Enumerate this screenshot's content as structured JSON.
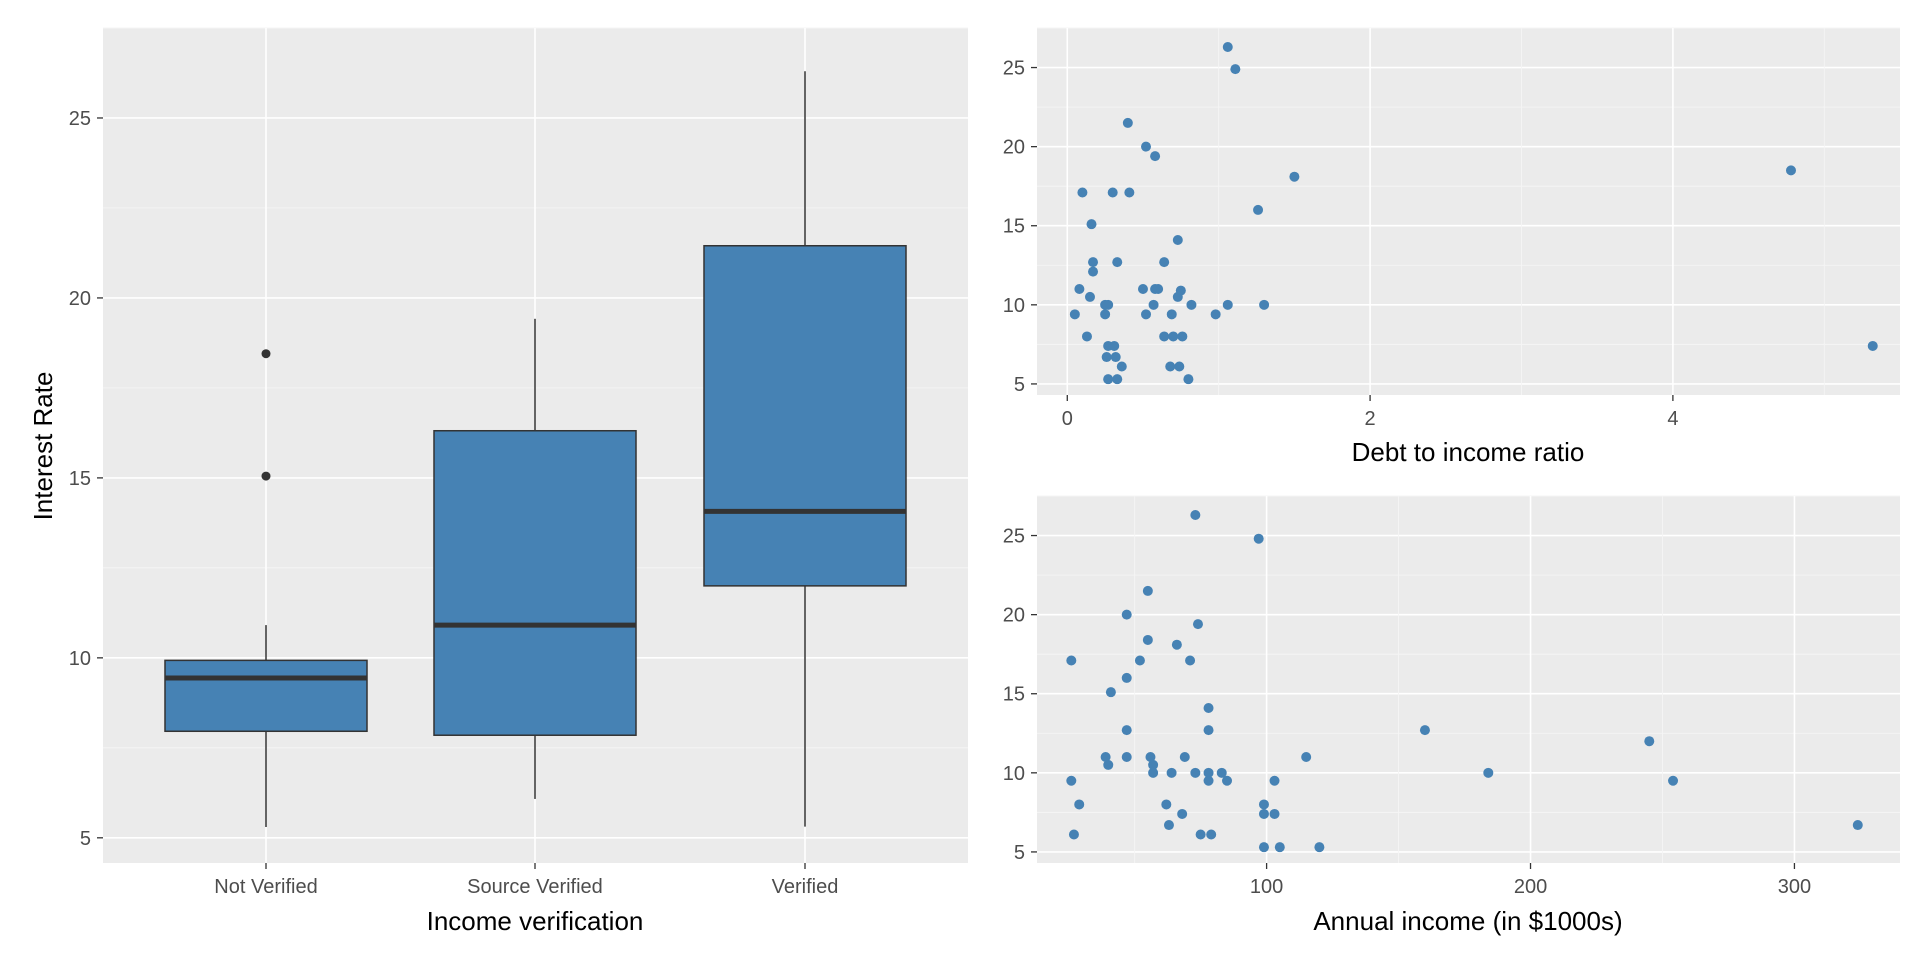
{
  "colors": {
    "fill": "#4682B4",
    "outline": "#333333",
    "panel": "#EBEBEB"
  },
  "chart_data": [
    {
      "type": "boxplot",
      "xlabel": "Income verification",
      "ylabel": "Interest Rate",
      "ylim": [
        4.3,
        27.5
      ],
      "yticks": [
        5,
        10,
        15,
        20,
        25
      ],
      "categories": [
        "Not Verified",
        "Source Verified",
        "Verified"
      ],
      "boxes": [
        {
          "category": "Not Verified",
          "min": 5.3,
          "q1": 7.96,
          "median": 9.44,
          "q3": 9.93,
          "max": 10.91,
          "outliers": [
            15.05,
            18.45
          ]
        },
        {
          "category": "Source Verified",
          "min": 6.08,
          "q1": 7.85,
          "median": 10.91,
          "q3": 16.31,
          "max": 19.42,
          "outliers": []
        },
        {
          "category": "Verified",
          "min": 5.31,
          "q1": 12.0,
          "median": 14.07,
          "q3": 21.45,
          "max": 26.3,
          "outliers": []
        }
      ]
    },
    {
      "type": "scatter",
      "xlabel": "Debt to income ratio",
      "ylabel": "",
      "xlim": [
        -0.2,
        5.5
      ],
      "ylim": [
        4.3,
        27.5
      ],
      "xticks": [
        0,
        2,
        4
      ],
      "yticks": [
        5,
        10,
        15,
        20,
        25
      ],
      "points": [
        [
          1.06,
          26.3
        ],
        [
          1.11,
          24.9
        ],
        [
          0.4,
          21.5
        ],
        [
          0.52,
          20.0
        ],
        [
          0.58,
          19.4
        ],
        [
          1.5,
          18.1
        ],
        [
          4.78,
          18.5
        ],
        [
          0.1,
          17.1
        ],
        [
          0.3,
          17.1
        ],
        [
          0.41,
          17.1
        ],
        [
          1.26,
          16.0
        ],
        [
          0.16,
          15.1
        ],
        [
          0.73,
          14.1
        ],
        [
          0.17,
          12.7
        ],
        [
          0.33,
          12.7
        ],
        [
          0.64,
          12.7
        ],
        [
          0.17,
          12.1
        ],
        [
          0.08,
          11.0
        ],
        [
          0.5,
          11.0
        ],
        [
          0.58,
          11.0
        ],
        [
          0.6,
          11.0
        ],
        [
          0.75,
          10.9
        ],
        [
          0.15,
          10.5
        ],
        [
          0.73,
          10.5
        ],
        [
          0.25,
          10.0
        ],
        [
          0.27,
          10.0
        ],
        [
          0.57,
          10.0
        ],
        [
          0.82,
          10.0
        ],
        [
          1.06,
          10.0
        ],
        [
          1.3,
          10.0
        ],
        [
          0.05,
          9.4
        ],
        [
          0.25,
          9.4
        ],
        [
          0.52,
          9.4
        ],
        [
          0.69,
          9.4
        ],
        [
          0.98,
          9.4
        ],
        [
          0.13,
          8.0
        ],
        [
          0.64,
          8.0
        ],
        [
          0.7,
          8.0
        ],
        [
          0.76,
          8.0
        ],
        [
          0.27,
          7.4
        ],
        [
          0.31,
          7.4
        ],
        [
          5.32,
          7.4
        ],
        [
          0.26,
          6.7
        ],
        [
          0.32,
          6.7
        ],
        [
          0.36,
          6.1
        ],
        [
          0.68,
          6.1
        ],
        [
          0.74,
          6.1
        ],
        [
          0.27,
          5.3
        ],
        [
          0.33,
          5.3
        ],
        [
          0.8,
          5.3
        ]
      ]
    },
    {
      "type": "scatter",
      "xlabel": "Annual income (in $1000s)",
      "ylabel": "",
      "xlim": [
        13,
        340
      ],
      "ylim": [
        4.3,
        27.5
      ],
      "xticks": [
        100,
        200,
        300
      ],
      "yticks": [
        5,
        10,
        15,
        20,
        25
      ],
      "points": [
        [
          73,
          26.3
        ],
        [
          97,
          24.8
        ],
        [
          55,
          21.5
        ],
        [
          47,
          20.0
        ],
        [
          74,
          19.4
        ],
        [
          55,
          18.4
        ],
        [
          66,
          18.1
        ],
        [
          26,
          17.1
        ],
        [
          52,
          17.1
        ],
        [
          71,
          17.1
        ],
        [
          47,
          16.0
        ],
        [
          41,
          15.1
        ],
        [
          78,
          14.1
        ],
        [
          47,
          12.7
        ],
        [
          78,
          12.7
        ],
        [
          160,
          12.7
        ],
        [
          245,
          12.0
        ],
        [
          39,
          11.0
        ],
        [
          47,
          11.0
        ],
        [
          56,
          11.0
        ],
        [
          69,
          11.0
        ],
        [
          115,
          11.0
        ],
        [
          40,
          10.5
        ],
        [
          57,
          10.5
        ],
        [
          57,
          10.0
        ],
        [
          64,
          10.0
        ],
        [
          73,
          10.0
        ],
        [
          78,
          10.0
        ],
        [
          83,
          10.0
        ],
        [
          184,
          10.0
        ],
        [
          26,
          9.5
        ],
        [
          78,
          9.5
        ],
        [
          85,
          9.5
        ],
        [
          103,
          9.5
        ],
        [
          254,
          9.5
        ],
        [
          29,
          8.0
        ],
        [
          62,
          8.0
        ],
        [
          99,
          8.0
        ],
        [
          68,
          7.4
        ],
        [
          99,
          7.4
        ],
        [
          103,
          7.4
        ],
        [
          63,
          6.7
        ],
        [
          324,
          6.7
        ],
        [
          27,
          6.1
        ],
        [
          75,
          6.1
        ],
        [
          79,
          6.1
        ],
        [
          99,
          5.3
        ],
        [
          105,
          5.3
        ],
        [
          120,
          5.3
        ]
      ]
    }
  ]
}
